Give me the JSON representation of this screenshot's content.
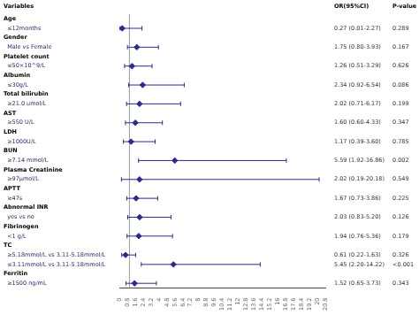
{
  "chart_data": {
    "type": "forest",
    "column_headers": [
      "Variables",
      "OR(95%CI)",
      "P-value"
    ],
    "categories": [
      "Age",
      "  ≤12months",
      "Gender",
      "  Male vs Female",
      "Platelet count",
      "  ≤50×10^9/L",
      "Albumin",
      "  ≤30g/L",
      "Total bilirubin",
      "  ≥21.0 umol/L",
      "AST",
      "  ≥550 U/L",
      "LDH",
      "  ≥1000U/L",
      "BUN",
      "  ≥7.14 mmol/L",
      "Plasma Creatinine",
      "  ≥97μmol/L",
      "APTT",
      "  ≥47s",
      "Abnormal INR",
      "  yes vs no",
      "Fibrinogen",
      "  <1 g/L",
      "TC",
      "  ≥5.18mmol/L vs 3.11-5.18mmol/L",
      "  ≤3.11mmol/L vs 3.11-5.18mmol/L",
      "Ferritin",
      "  ≥1500 ng/mL"
    ],
    "values": [
      null,
      0.27,
      null,
      1.75,
      null,
      1.26,
      null,
      2.34,
      null,
      2.02,
      null,
      1.6,
      null,
      1.17,
      null,
      5.59,
      null,
      2.02,
      null,
      1.67,
      null,
      2.03,
      null,
      1.94,
      null,
      0.61,
      5.45,
      null,
      1.52
    ],
    "ci_low": [
      null,
      0.01,
      null,
      0.8,
      null,
      0.51,
      null,
      0.92,
      null,
      0.71,
      null,
      0.6,
      null,
      0.39,
      null,
      1.92,
      null,
      0.19,
      null,
      0.73,
      null,
      0.83,
      null,
      0.76,
      null,
      0.22,
      2.2,
      null,
      0.65
    ],
    "ci_high": [
      null,
      2.27,
      null,
      3.93,
      null,
      3.29,
      null,
      6.54,
      null,
      6.17,
      null,
      4.33,
      null,
      3.6,
      null,
      16.86,
      null,
      20.18,
      null,
      3.86,
      null,
      5.2,
      null,
      5.36,
      null,
      1.63,
      14.22,
      null,
      3.73
    ],
    "value_labels": [
      null,
      "0.27 (0.01-2.27)",
      null,
      "1.75 (0.80-3.93)",
      null,
      "1.26 (0.51-3.29)",
      null,
      "2.34 (0.92-6.54)",
      null,
      "2.02 (0.71-6.17)",
      null,
      "1.60 (0.60-4.33)",
      null,
      "1.17 (0.39-3.60)",
      null,
      "5.59 (1.92-16.86)",
      null,
      "2.02 (0.19-20.18)",
      null,
      "1.67 (0.73-3.86)",
      null,
      "2.03 (0.83-5.20)",
      null,
      "1.94 (0.76-5.36)",
      null,
      "0.61 (0.22-1.63)",
      "5.45 (2.20-14.22)",
      null,
      "1.52 (0.65-3.73)"
    ],
    "p_values": [
      null,
      "0.289",
      null,
      "0.167",
      null,
      "0.626",
      null,
      "0.086",
      null,
      "0.199",
      null,
      "0.347",
      null,
      "0.785",
      null,
      "0.002",
      null,
      "0.549",
      null,
      "0.225",
      null,
      "0.126",
      null,
      "0.179",
      null,
      "0.326",
      "<0.001",
      null,
      "0.343"
    ],
    "reference_line": 1.0,
    "xlim": [
      0,
      20.8
    ],
    "xticks": [
      0,
      0.8,
      1.6,
      2.4,
      3.2,
      4,
      4.8,
      5.6,
      6.4,
      7.2,
      8,
      8.8,
      9.6,
      10.4,
      11.2,
      12,
      12.8,
      13.6,
      14.4,
      15.2,
      16,
      16.8,
      17.6,
      18.4,
      19.2,
      20,
      20.8
    ],
    "color": "#2b2b8c",
    "grid": false
  }
}
